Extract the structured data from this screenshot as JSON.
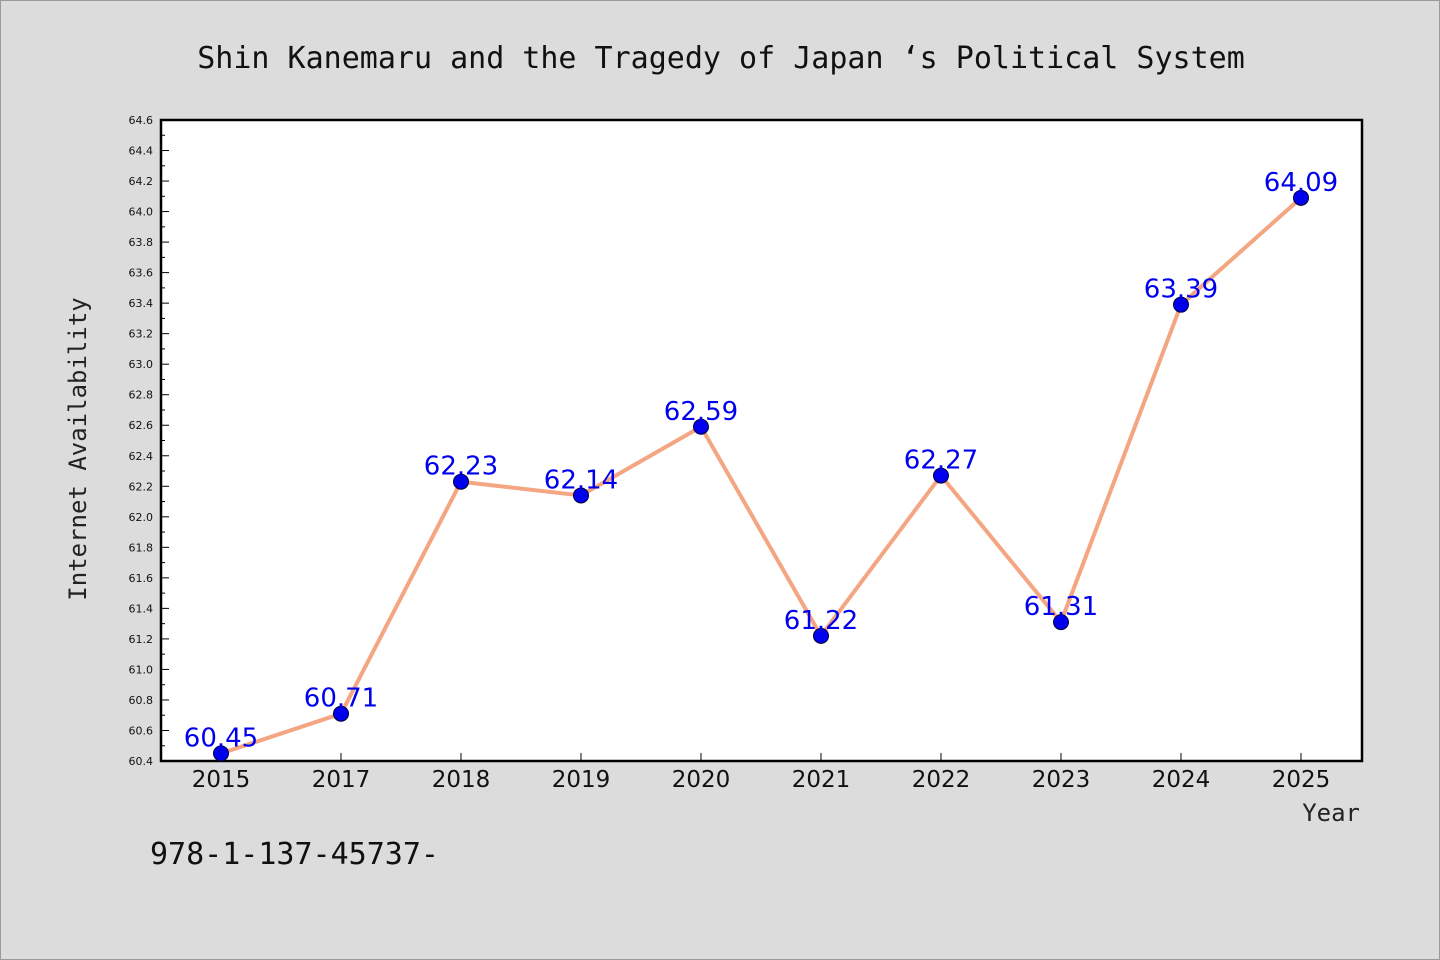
{
  "chart_data": {
    "type": "line",
    "title": "Shin Kanemaru and the Tragedy of Japan ‘s Political System",
    "xlabel": "Year",
    "ylabel": "Internet Availability",
    "categories": [
      "2015",
      "2017",
      "2018",
      "2019",
      "2020",
      "2021",
      "2022",
      "2023",
      "2024",
      "2025"
    ],
    "series": [
      {
        "values": [
          60.45,
          60.71,
          62.23,
          62.14,
          62.59,
          61.22,
          62.27,
          61.31,
          63.39,
          64.09
        ],
        "value_labels": [
          "60.45",
          "60.71",
          "62.23",
          "62.14",
          "62.59",
          "61.22",
          "62.27",
          "61.31",
          "63.39",
          "64.09"
        ],
        "line_color": "#f4a582",
        "marker_color": "#0000ee"
      }
    ],
    "ylim": [
      60.4,
      64.6
    ],
    "yticks": [
      "60.4",
      "60.6",
      "60.8",
      "61.0",
      "61.2",
      "61.4",
      "61.6",
      "61.8",
      "62.0",
      "62.2",
      "62.4",
      "62.6",
      "62.8",
      "63.0",
      "63.2",
      "63.4",
      "63.6",
      "63.8",
      "64.0",
      "64.2",
      "64.4",
      "64.6"
    ],
    "grid": false,
    "legend": "none",
    "footer": "978-1-137-45737-"
  }
}
